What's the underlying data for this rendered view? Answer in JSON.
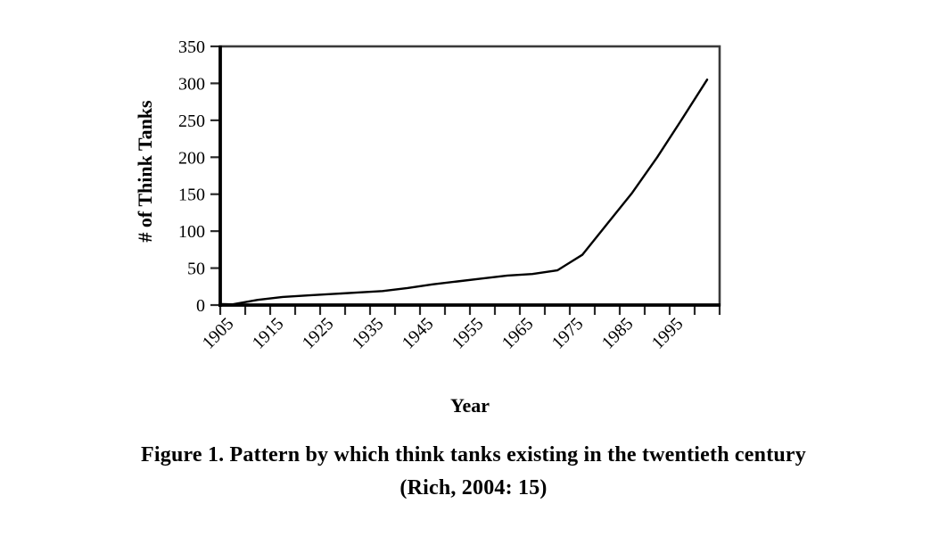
{
  "figure": {
    "caption_line1": "Figure 1. Pattern by which think tanks existing in the twentieth century",
    "caption_line2": "(Rich, 2004: 15)"
  },
  "chart_data": {
    "type": "line",
    "title": "",
    "xlabel": "Year",
    "ylabel": "# of Think Tanks",
    "x": [
      1905,
      1910,
      1915,
      1920,
      1925,
      1930,
      1935,
      1940,
      1945,
      1950,
      1955,
      1960,
      1965,
      1970,
      1975,
      1980,
      1985,
      1990,
      1995,
      2000
    ],
    "values": [
      1,
      7,
      11,
      13,
      15,
      17,
      19,
      23,
      28,
      32,
      36,
      40,
      42,
      47,
      68,
      110,
      152,
      200,
      252,
      305
    ],
    "x_tick_labels": [
      "1905",
      "1915",
      "1925",
      "1935",
      "1945",
      "1955",
      "1965",
      "1975",
      "1985",
      "1995"
    ],
    "y_ticks": [
      0,
      50,
      100,
      150,
      200,
      250,
      300,
      350
    ],
    "xlim": [
      1900,
      2000
    ],
    "ylim": [
      0,
      350
    ],
    "grid": false,
    "legend": "none",
    "line_color": "#000000",
    "axis_color": "#000000",
    "box_color": "#3a3a3a",
    "tick_color": "#2a2a2a"
  }
}
